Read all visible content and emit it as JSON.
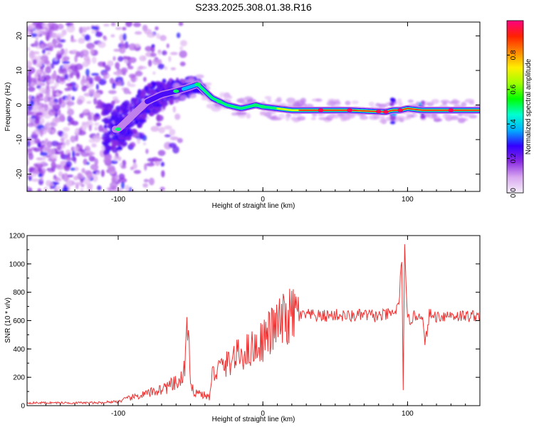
{
  "title": "S233.2025.308.01.38.R16",
  "chart_data": [
    {
      "type": "heatmap",
      "name": "spectrogram",
      "xlabel": "Height of straight line (km)",
      "ylabel": "Frequency (Hz)",
      "xlim": [
        -163,
        150
      ],
      "ylim": [
        -25,
        24
      ],
      "x_ticks": [
        -100,
        0,
        100
      ],
      "x_tick_labels": [
        "-100",
        "0",
        "100"
      ],
      "y_ticks": [
        -20,
        -10,
        0,
        10,
        20
      ],
      "y_tick_labels": [
        "-20",
        "-10",
        "0",
        "10",
        "20"
      ],
      "colorbar": {
        "label": "Normalized spectral amplitude",
        "range": [
          0,
          1
        ],
        "ticks": [
          0.0,
          0.2,
          0.4,
          0.6,
          0.8
        ],
        "tick_labels": [
          "0.0",
          "0.2",
          "0.4",
          "0.6",
          "0.8"
        ],
        "colors": [
          "#f5eefa",
          "#d9a8f0",
          "#8a2be2",
          "#3300ff",
          "#00b0ff",
          "#00ffd0",
          "#00ff00",
          "#a0ff00",
          "#ffee00",
          "#ff8800",
          "#ff2200",
          "#ff0080"
        ]
      },
      "ridge": {
        "x": [
          -100,
          -90,
          -80,
          -70,
          -60,
          -52,
          -45,
          -40,
          -35,
          -30,
          -25,
          -20,
          -15,
          -10,
          -5,
          0,
          10,
          20,
          40,
          60,
          75,
          85,
          90,
          95,
          100,
          110,
          120,
          150
        ],
        "y": [
          -7,
          -3,
          1,
          3,
          4,
          5,
          6,
          4,
          2,
          1,
          0,
          -0.5,
          -1,
          -0.5,
          0,
          -0.5,
          -1,
          -1.5,
          -1.5,
          -1.5,
          -1.8,
          -2,
          -1.5,
          -1.5,
          -1,
          -1.5,
          -1.5,
          -1.5
        ]
      }
    },
    {
      "type": "line",
      "name": "snr",
      "xlabel": "Height of straight line (km)",
      "ylabel": "SNR (10 * v/v)",
      "xlim": [
        -163,
        150
      ],
      "ylim": [
        0,
        1200
      ],
      "x_ticks": [
        -100,
        0,
        100
      ],
      "x_tick_labels": [
        "-100",
        "0",
        "100"
      ],
      "y_ticks": [
        0,
        200,
        400,
        600,
        800,
        1000,
        1200
      ],
      "y_tick_labels": [
        "0",
        "200",
        "400",
        "600",
        "800",
        "1000",
        "1200"
      ],
      "series_color": "#ee3333",
      "x": [
        -163,
        -150,
        -130,
        -110,
        -100,
        -90,
        -80,
        -70,
        -60,
        -55,
        -53,
        -52,
        -51,
        -50,
        -45,
        -40,
        -37,
        -35,
        -30,
        -25,
        -20,
        -15,
        -10,
        -5,
        0,
        5,
        10,
        15,
        20,
        25,
        30,
        40,
        50,
        60,
        70,
        80,
        90,
        94,
        96,
        97,
        98,
        99,
        100,
        105,
        110,
        112,
        115,
        120,
        130,
        140,
        150
      ],
      "y": [
        20,
        20,
        20,
        20,
        25,
        50,
        70,
        100,
        130,
        160,
        380,
        480,
        300,
        100,
        80,
        60,
        50,
        210,
        260,
        280,
        330,
        350,
        380,
        400,
        450,
        500,
        550,
        580,
        610,
        630,
        640,
        630,
        640,
        630,
        640,
        630,
        650,
        700,
        1050,
        150,
        1100,
        800,
        600,
        630,
        650,
        420,
        640,
        630,
        640,
        630,
        640
      ]
    }
  ]
}
